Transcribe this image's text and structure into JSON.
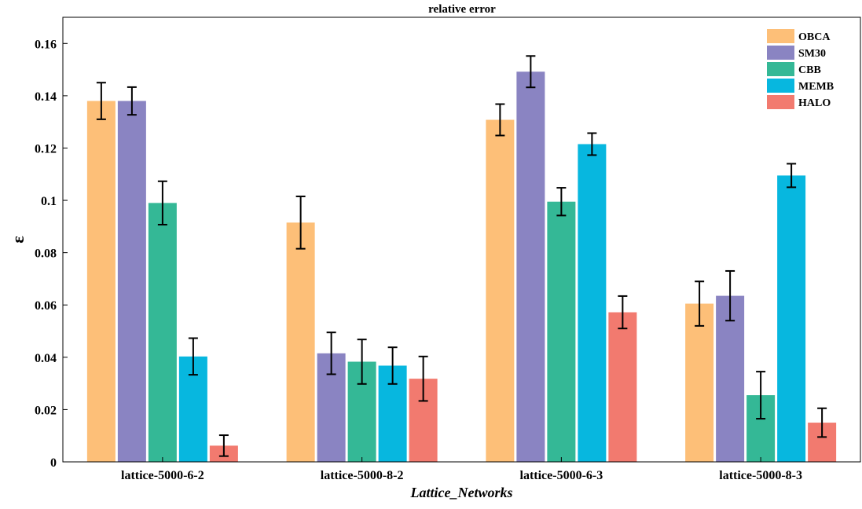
{
  "chart_data": {
    "type": "bar",
    "title": "relative error",
    "xlabel": "Lattice_Networks",
    "ylabel": "ε",
    "ylim": [
      0,
      0.17
    ],
    "yticks": [
      0,
      0.02,
      0.04,
      0.06,
      0.08,
      0.1,
      0.12,
      0.14,
      0.16
    ],
    "ytick_labels": [
      "0",
      "0.02",
      "0.04",
      "0.06",
      "0.08",
      "0.1",
      "0.12",
      "0.14",
      "0.16"
    ],
    "categories": [
      "lattice-5000-6-2",
      "lattice-5000-8-2",
      "lattice-5000-6-3",
      "lattice-5000-8-3"
    ],
    "legend_position": "top-right",
    "grid": false,
    "series": [
      {
        "name": "OBCA",
        "color": "#FDBF78",
        "values": [
          0.138,
          0.0915,
          0.1308,
          0.0605
        ],
        "errors": [
          0.007,
          0.01,
          0.006,
          0.0085
        ]
      },
      {
        "name": "SM30",
        "color": "#8A84C2",
        "values": [
          0.138,
          0.0415,
          0.1492,
          0.0635
        ],
        "errors": [
          0.0053,
          0.008,
          0.006,
          0.0095
        ]
      },
      {
        "name": "CBB",
        "color": "#34B896",
        "values": [
          0.099,
          0.0383,
          0.0995,
          0.0255
        ],
        "errors": [
          0.0083,
          0.0085,
          0.0053,
          0.009
        ]
      },
      {
        "name": "MEMB",
        "color": "#07B7DF",
        "values": [
          0.0403,
          0.0368,
          0.1215,
          0.1095
        ],
        "errors": [
          0.007,
          0.007,
          0.0042,
          0.0045
        ]
      },
      {
        "name": "HALO",
        "color": "#F27A6F",
        "values": [
          0.0062,
          0.0318,
          0.0572,
          0.015
        ],
        "errors": [
          0.004,
          0.0085,
          0.0062,
          0.0055
        ]
      }
    ]
  }
}
